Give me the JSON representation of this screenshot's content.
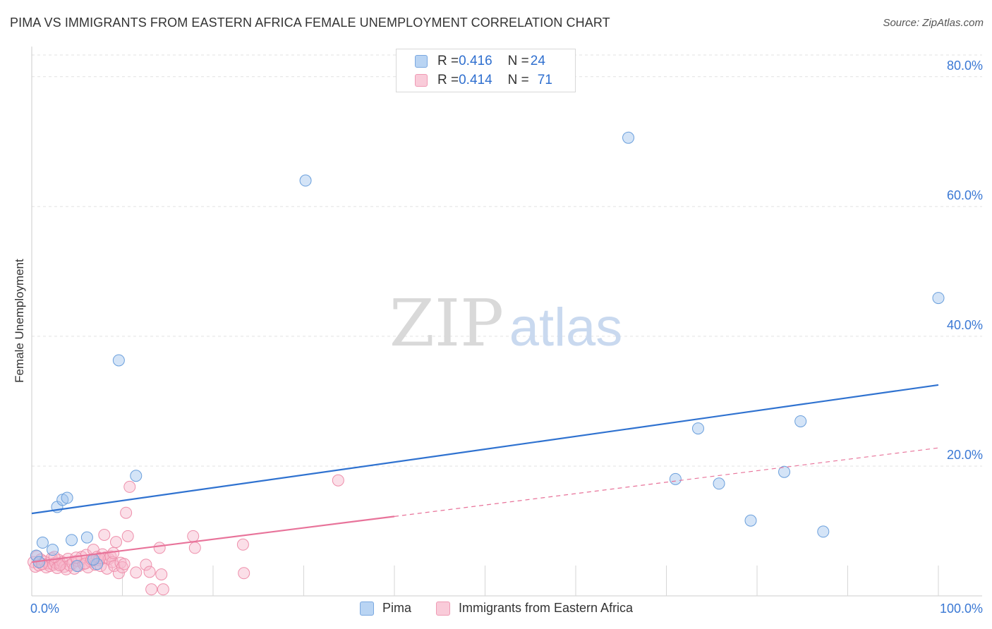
{
  "title": "PIMA VS IMMIGRANTS FROM EASTERN AFRICA FEMALE UNEMPLOYMENT CORRELATION CHART",
  "source": "Source: ZipAtlas.com",
  "watermark": {
    "zip": "ZIP",
    "atlas": "atlas"
  },
  "legend": {
    "rows": [
      {
        "r_label": "R = ",
        "r_value": "0.416",
        "n_label": "N = ",
        "n_value": "24"
      },
      {
        "r_label": "R = ",
        "r_value": "0.414",
        "n_label": "N = ",
        "n_value": "71"
      }
    ]
  },
  "chart_data": {
    "type": "scatter",
    "title": "PIMA VS IMMIGRANTS FROM EASTERN AFRICA FEMALE UNEMPLOYMENT CORRELATION CHART",
    "xlabel": "",
    "ylabel": "Female Unemployment",
    "xlim": [
      0,
      100
    ],
    "ylim": [
      0,
      84
    ],
    "x_tick_labels": [
      "0.0%",
      "100.0%"
    ],
    "y_ticks": [
      20,
      40,
      60,
      80
    ],
    "y_tick_labels": [
      "20.0%",
      "40.0%",
      "60.0%",
      "80.0%"
    ],
    "grid": true,
    "series": [
      {
        "name": "Pima",
        "color": "#9fc4ee",
        "stroke": "#6a9fdc",
        "line_color": "#2f72d0",
        "r": "0.416",
        "n": "24",
        "trend": {
          "x0": 0,
          "y0": 12.7,
          "x1": 100,
          "y1": 32.5,
          "dashed_from": null
        },
        "points": [
          [
            0.5,
            6.2
          ],
          [
            1.2,
            8.2
          ],
          [
            2.3,
            7.1
          ],
          [
            2.8,
            13.7
          ],
          [
            3.4,
            14.8
          ],
          [
            3.9,
            15.1
          ],
          [
            4.4,
            8.6
          ],
          [
            5.0,
            4.6
          ],
          [
            6.1,
            9.0
          ],
          [
            7.2,
            4.9
          ],
          [
            9.6,
            36.3
          ],
          [
            11.5,
            18.5
          ],
          [
            30.2,
            64.0
          ],
          [
            65.8,
            70.6
          ],
          [
            71.0,
            18.0
          ],
          [
            73.5,
            25.8
          ],
          [
            75.8,
            17.3
          ],
          [
            79.3,
            11.6
          ],
          [
            83.0,
            19.1
          ],
          [
            84.8,
            26.9
          ],
          [
            87.3,
            9.9
          ],
          [
            100,
            45.9
          ],
          [
            0.8,
            5.2
          ],
          [
            6.8,
            5.6
          ]
        ]
      },
      {
        "name": "Immigrants from Eastern Africa",
        "color": "#f7b9cc",
        "stroke": "#ee8fab",
        "line_color": "#e8739a",
        "r": "0.414",
        "n": "71",
        "trend": {
          "x0": 0,
          "y0": 5.2,
          "x1": 100,
          "y1": 22.8,
          "dashed_from": 40
        },
        "points": [
          [
            0.2,
            5.2
          ],
          [
            0.4,
            4.5
          ],
          [
            0.6,
            6.1
          ],
          [
            0.8,
            4.7
          ],
          [
            1.0,
            5.6
          ],
          [
            1.2,
            4.9
          ],
          [
            1.4,
            5.3
          ],
          [
            1.6,
            4.4
          ],
          [
            1.8,
            5.0
          ],
          [
            2.0,
            4.6
          ],
          [
            2.2,
            5.8
          ],
          [
            2.4,
            4.8
          ],
          [
            2.6,
            5.1
          ],
          [
            2.8,
            4.3
          ],
          [
            3.0,
            5.5
          ],
          [
            3.2,
            4.9
          ],
          [
            3.4,
            5.2
          ],
          [
            3.6,
            4.5
          ],
          [
            3.8,
            4.1
          ],
          [
            4.0,
            5.7
          ],
          [
            4.2,
            4.7
          ],
          [
            4.5,
            5.0
          ],
          [
            4.7,
            4.2
          ],
          [
            5.0,
            5.4
          ],
          [
            5.2,
            4.6
          ],
          [
            5.5,
            6.0
          ],
          [
            5.7,
            4.9
          ],
          [
            6.0,
            6.3
          ],
          [
            6.2,
            4.4
          ],
          [
            6.5,
            5.3
          ],
          [
            6.8,
            7.1
          ],
          [
            7.0,
            4.8
          ],
          [
            7.2,
            6.0
          ],
          [
            7.4,
            5.5
          ],
          [
            7.6,
            4.6
          ],
          [
            7.8,
            6.4
          ],
          [
            8.0,
            9.4
          ],
          [
            8.1,
            5.9
          ],
          [
            8.3,
            4.2
          ],
          [
            8.5,
            5.7
          ],
          [
            8.7,
            6.1
          ],
          [
            8.9,
            5.2
          ],
          [
            9.1,
            4.6
          ],
          [
            9.3,
            8.3
          ],
          [
            9.6,
            3.5
          ],
          [
            9.8,
            5.1
          ],
          [
            10.0,
            4.4
          ],
          [
            10.2,
            4.9
          ],
          [
            10.4,
            12.8
          ],
          [
            10.6,
            9.2
          ],
          [
            10.8,
            16.8
          ],
          [
            11.5,
            3.6
          ],
          [
            12.6,
            4.8
          ],
          [
            13.0,
            3.7
          ],
          [
            13.2,
            1.0
          ],
          [
            14.1,
            7.4
          ],
          [
            14.3,
            3.3
          ],
          [
            14.5,
            1.0
          ],
          [
            17.8,
            9.2
          ],
          [
            18.0,
            7.4
          ],
          [
            23.3,
            7.9
          ],
          [
            23.4,
            3.5
          ],
          [
            33.8,
            17.8
          ],
          [
            1.1,
            4.9
          ],
          [
            3.1,
            4.7
          ],
          [
            5.9,
            5.0
          ],
          [
            7.5,
            5.8
          ],
          [
            9.0,
            6.6
          ],
          [
            2.5,
            6.0
          ],
          [
            4.9,
            5.9
          ],
          [
            6.6,
            5.6
          ]
        ]
      }
    ]
  }
}
